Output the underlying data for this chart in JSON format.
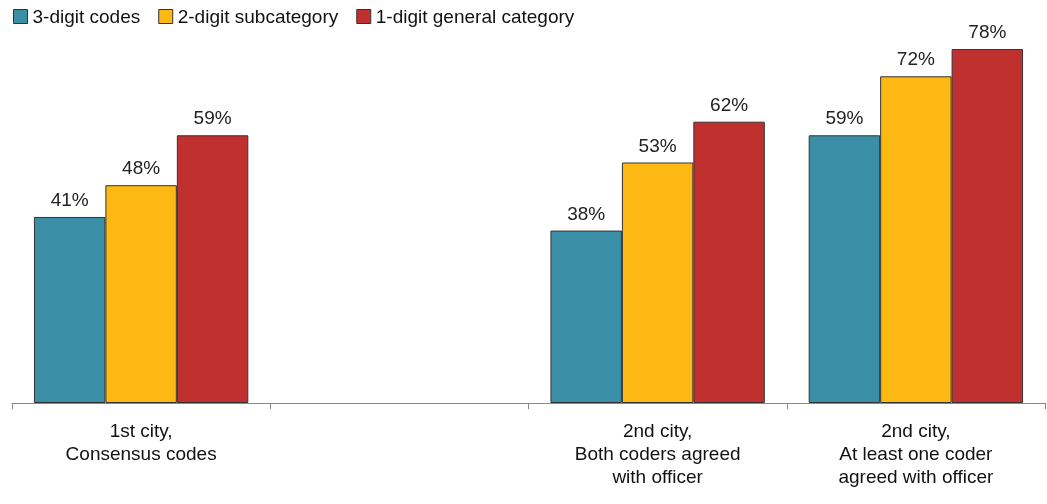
{
  "chart_data": {
    "type": "bar",
    "categories": [
      "1st city,\nConsensus codes",
      null,
      "2nd city,\nBoth coders agreed\nwith officer",
      "2nd city,\nAt least one coder\nagreed with officer"
    ],
    "series": [
      {
        "name": "3-digit codes",
        "color": "#3a8fa6",
        "values": [
          41,
          null,
          38,
          59
        ],
        "value_labels": [
          "41%",
          null,
          "38%",
          "59%"
        ]
      },
      {
        "name": "2-digit subcategory",
        "color": "#fdb813",
        "values": [
          48,
          null,
          53,
          72
        ],
        "value_labels": [
          "48%",
          null,
          "53%",
          "72%"
        ]
      },
      {
        "name": "1-digit general category",
        "color": "#c0302f",
        "values": [
          59,
          null,
          62,
          78
        ],
        "value_labels": [
          "59%",
          null,
          "62%",
          "78%"
        ]
      }
    ],
    "grid": false,
    "legend": "top left"
  }
}
